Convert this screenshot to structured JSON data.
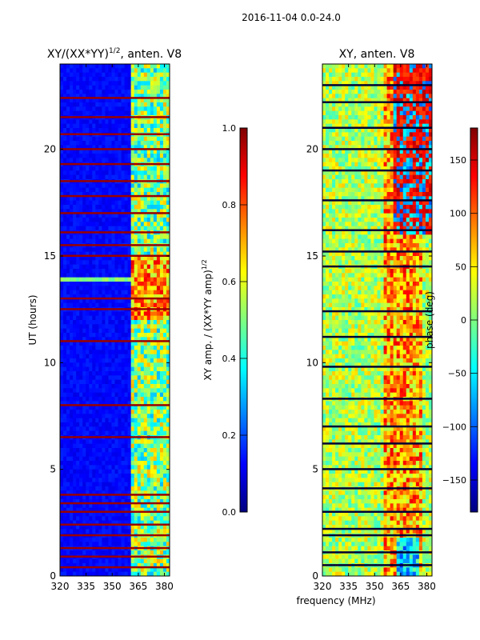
{
  "suptitle": "2016-11-04 0.0-24.0",
  "xlabel_shared": "frequency (MHz)",
  "chart_data": [
    {
      "type": "heatmap",
      "title": "XY/(XX*YY)",
      "title_superscript": "1/2",
      "title_suffix": ", anten. V8",
      "ylabel": "UT (hours)",
      "x_ticks": [
        320,
        335,
        350,
        365,
        380
      ],
      "y_ticks": [
        0,
        5,
        10,
        15,
        20
      ],
      "xlim": [
        320,
        383
      ],
      "ylim": [
        0,
        24
      ],
      "colorbar": {
        "label": "XY amp. / (XX*YY amp)",
        "label_superscript": "1/2",
        "ticks": [
          "0.0",
          "0.2",
          "0.4",
          "0.6",
          "0.8",
          "1.0"
        ],
        "tick_values": [
          0.0,
          0.2,
          0.4,
          0.6,
          0.8,
          1.0
        ],
        "range": [
          0,
          1
        ]
      },
      "band_start_mhz": 360,
      "red_line_hours": [
        0.4,
        0.9,
        1.3,
        1.9,
        2.4,
        3.0,
        3.4,
        3.8,
        6.5,
        8.0,
        11.0,
        12.5,
        13.0,
        15.0,
        15.5,
        16.1,
        17.0,
        17.8,
        18.5,
        19.3,
        20.0,
        20.7,
        21.5,
        22.4
      ]
    },
    {
      "type": "heatmap",
      "title": "XY, anten. V8",
      "x_ticks": [
        320,
        335,
        350,
        365,
        380
      ],
      "y_ticks": [
        0,
        5,
        10,
        15,
        20
      ],
      "xlim": [
        320,
        383
      ],
      "ylim": [
        0,
        24
      ],
      "colorbar": {
        "label": "phase (deg)",
        "ticks": [
          "150",
          "100",
          "50",
          "0",
          "−50",
          "−100",
          "−150"
        ],
        "tick_values": [
          150,
          100,
          50,
          0,
          -50,
          -100,
          -150
        ],
        "range": [
          -180,
          180
        ]
      },
      "dark_line_hours": [
        0.5,
        1.1,
        1.9,
        2.2,
        3.0,
        4.1,
        5.0,
        6.2,
        7.0,
        8.3,
        9.8,
        11.2,
        12.4,
        14.5,
        15.2,
        16.2,
        17.6,
        19.0,
        20.0,
        21.0,
        22.2,
        23.0
      ]
    }
  ]
}
